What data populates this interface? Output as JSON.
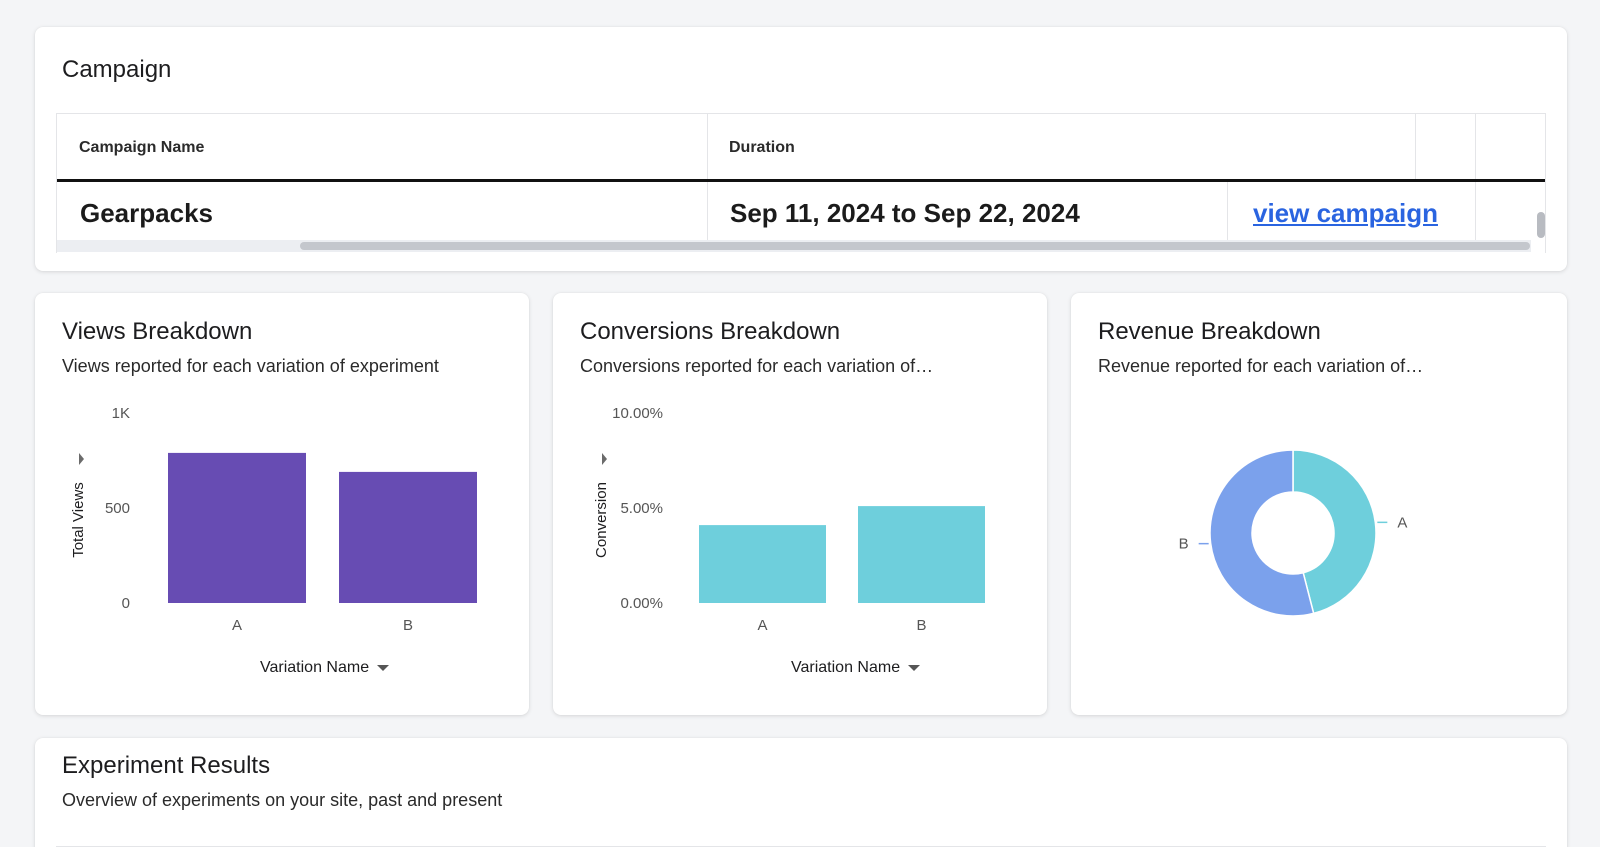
{
  "campaign": {
    "title": "Campaign",
    "columns": [
      "Campaign Name",
      "Duration"
    ],
    "row": {
      "name": "Gearpacks",
      "duration": "Sep 11, 2024 to Sep 22, 2024",
      "link": "view campaign"
    }
  },
  "views": {
    "title": "Views Breakdown",
    "subtitle": "Views reported for each variation of experiment",
    "x_axis_button": "Variation Name"
  },
  "conversions": {
    "title": "Conversions Breakdown",
    "subtitle": "Conversions reported for each variation of…",
    "x_axis_button": "Variation Name"
  },
  "revenue": {
    "title": "Revenue Breakdown",
    "subtitle": "Revenue reported for each variation of…"
  },
  "experiments": {
    "title": "Experiment Results",
    "subtitle": "Overview of experiments on your site, past and present"
  },
  "colors": {
    "views_bar": "#674cb3",
    "conversion_bar": "#6ecfdc",
    "pie_a": "#6ecfdc",
    "pie_b": "#7ba1ec",
    "link": "#2a64e0"
  },
  "chart_data": [
    {
      "type": "bar",
      "title": "Views Breakdown",
      "categories": [
        "A",
        "B"
      ],
      "values": [
        790,
        690
      ],
      "ylabel": "Total Views",
      "xlabel": "Variation Name",
      "ylim": [
        0,
        1000
      ],
      "yticks": [
        "0",
        "500",
        "1K"
      ],
      "grid": false
    },
    {
      "type": "bar",
      "title": "Conversions Breakdown",
      "categories": [
        "A",
        "B"
      ],
      "values": [
        4.1,
        5.1
      ],
      "ylabel": "Conversion",
      "xlabel": "Variation Name",
      "ylim": [
        0,
        10
      ],
      "yticks": [
        "0.00%",
        "5.00%",
        "10.00%"
      ],
      "grid": false
    },
    {
      "type": "pie",
      "title": "Revenue Breakdown",
      "donut": true,
      "categories": [
        "A",
        "B"
      ],
      "values": [
        46,
        54
      ]
    }
  ]
}
